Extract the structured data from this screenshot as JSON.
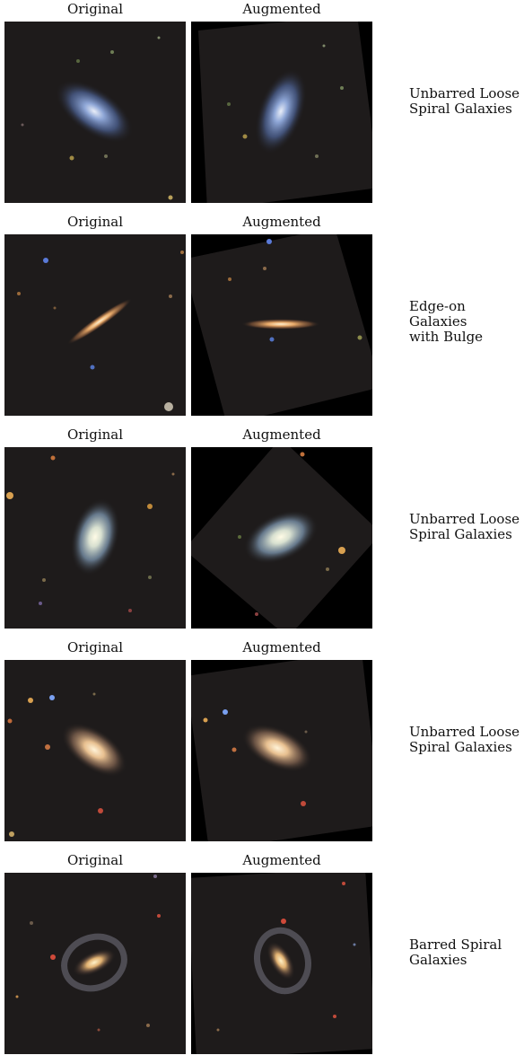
{
  "column_titles": {
    "original": "Original",
    "augmented": "Augmented"
  },
  "rows": [
    {
      "label": "Unbarred Loose\nSpiral Galaxies",
      "galaxy": {
        "kind": "spiral",
        "tone": "blue"
      },
      "augmentation": "rotation"
    },
    {
      "label": "Edge-on Galaxies\nwith Bulge",
      "galaxy": {
        "kind": "edge-on",
        "tone": "orange"
      },
      "augmentation": "rotation"
    },
    {
      "label": "Unbarred Loose\nSpiral Galaxies",
      "galaxy": {
        "kind": "spiral",
        "tone": "white-blue"
      },
      "augmentation": "rotation"
    },
    {
      "label": "Unbarred Loose\nSpiral Galaxies",
      "galaxy": {
        "kind": "spiral",
        "tone": "yellow"
      },
      "augmentation": "rotation"
    },
    {
      "label": "Barred Spiral\nGalaxies",
      "galaxy": {
        "kind": "barred-spiral",
        "tone": "yellow"
      },
      "augmentation": "rotation"
    }
  ]
}
